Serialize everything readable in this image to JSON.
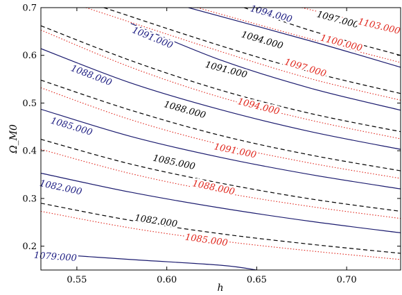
{
  "chart_data": {
    "type": "contour",
    "xlabel": "h",
    "ylabel": "Ω_M0",
    "xlim": [
      0.53,
      0.73
    ],
    "ylim": [
      0.15,
      0.7
    ],
    "xticks": [
      0.55,
      0.6,
      0.65,
      0.7
    ],
    "yticks": [
      0.2,
      0.3,
      0.4,
      0.5,
      0.6,
      0.7
    ],
    "xtick_labels": [
      "0.55",
      "0.60",
      "0.65",
      "0.70"
    ],
    "ytick_labels": [
      "0.2",
      "0.3",
      "0.4",
      "0.5",
      "0.6",
      "0.7"
    ],
    "grid": false,
    "legend": "none",
    "series": [
      {
        "style": "solid",
        "color": "#1a1a6e",
        "levels": [
          {
            "label": "1079.000",
            "points": [
              [
                0.53,
                0.185
              ],
              [
                0.58,
                0.172
              ],
              [
                0.63,
                0.16
              ],
              [
                0.65,
                0.15
              ]
            ],
            "label_at": [
              0.538,
              0.177
            ]
          },
          {
            "label": "1082.000",
            "points": [
              [
                0.53,
                0.353
              ],
              [
                0.58,
                0.313
              ],
              [
                0.63,
                0.28
              ],
              [
                0.68,
                0.252
              ],
              [
                0.73,
                0.228
              ]
            ],
            "label_at": [
              0.541,
              0.322
            ]
          },
          {
            "label": "1085.000",
            "points": [
              [
                0.53,
                0.487
              ],
              [
                0.58,
                0.43
              ],
              [
                0.63,
                0.386
              ],
              [
                0.68,
                0.35
              ],
              [
                0.73,
                0.32
              ]
            ],
            "label_at": [
              0.547,
              0.45
            ]
          },
          {
            "label": "1088.000",
            "points": [
              [
                0.53,
                0.614
              ],
              [
                0.58,
                0.542
              ],
              [
                0.63,
                0.486
              ],
              [
                0.68,
                0.44
              ],
              [
                0.73,
                0.403
              ]
            ],
            "label_at": [
              0.558,
              0.557
            ]
          },
          {
            "label": "1091.000",
            "points": [
              [
                0.58,
                0.667
              ],
              [
                0.63,
                0.59
              ],
              [
                0.68,
                0.531
              ],
              [
                0.73,
                0.485
              ]
            ],
            "label_at": [
              0.592,
              0.636
            ]
          },
          {
            "label": "1094.000",
            "points": [
              [
                0.612,
                0.7
              ],
              [
                0.68,
                0.63
              ],
              [
                0.73,
                0.575
              ]
            ],
            "label_at": [
              0.658,
              0.686
            ]
          }
        ]
      },
      {
        "style": "dashed",
        "color": "#000000",
        "levels": [
          {
            "label": "1082.000",
            "points": [
              [
                0.53,
                0.29
              ],
              [
                0.58,
                0.254
              ],
              [
                0.63,
                0.226
              ],
              [
                0.68,
                0.204
              ],
              [
                0.73,
                0.185
              ]
            ],
            "label_at": [
              0.594,
              0.252
            ]
          },
          {
            "label": "1085.000",
            "points": [
              [
                0.53,
                0.424
              ],
              [
                0.58,
                0.372
              ],
              [
                0.63,
                0.332
              ],
              [
                0.68,
                0.299
              ],
              [
                0.73,
                0.273
              ]
            ],
            "label_at": [
              0.604,
              0.375
            ]
          },
          {
            "label": "1088.000",
            "points": [
              [
                0.53,
                0.548
              ],
              [
                0.58,
                0.485
              ],
              [
                0.63,
                0.432
              ],
              [
                0.68,
                0.391
              ],
              [
                0.73,
                0.358
              ]
            ],
            "label_at": [
              0.61,
              0.485
            ]
          },
          {
            "label": "1091.000",
            "points": [
              [
                0.53,
                0.662
              ],
              [
                0.58,
                0.589
              ],
              [
                0.63,
                0.527
              ],
              [
                0.68,
                0.478
              ],
              [
                0.73,
                0.44
              ]
            ],
            "label_at": [
              0.633,
              0.569
            ]
          },
          {
            "label": "1094.000",
            "points": [
              [
                0.565,
                0.7
              ],
              [
                0.63,
                0.62
              ],
              [
                0.68,
                0.565
              ],
              [
                0.73,
                0.52
              ]
            ],
            "label_at": [
              0.653,
              0.631
            ]
          },
          {
            "label": "1097.000",
            "points": [
              [
                0.643,
                0.7
              ],
              [
                0.68,
                0.652
              ],
              [
                0.73,
                0.6
              ]
            ],
            "label_at": [
              0.695,
              0.674
            ]
          }
        ]
      },
      {
        "style": "dotted",
        "color": "#e0251b",
        "levels": [
          {
            "label": "1085.000",
            "points": [
              [
                0.53,
                0.273
              ],
              [
                0.58,
                0.238
              ],
              [
                0.63,
                0.211
              ],
              [
                0.68,
                0.19
              ],
              [
                0.73,
                0.172
              ]
            ],
            "label_at": [
              0.622,
              0.212
            ]
          },
          {
            "label": "1088.000",
            "points": [
              [
                0.53,
                0.403
              ],
              [
                0.58,
                0.352
              ],
              [
                0.63,
                0.313
              ],
              [
                0.68,
                0.283
              ],
              [
                0.73,
                0.258
              ]
            ],
            "label_at": [
              0.626,
              0.322
            ]
          },
          {
            "label": "1091.000",
            "points": [
              [
                0.53,
                0.532
              ],
              [
                0.58,
                0.465
              ],
              [
                0.63,
                0.413
              ],
              [
                0.68,
                0.374
              ],
              [
                0.73,
                0.342
              ]
            ],
            "label_at": [
              0.638,
              0.399
            ]
          },
          {
            "label": "1094.000",
            "points": [
              [
                0.53,
                0.653
              ],
              [
                0.58,
                0.575
              ],
              [
                0.63,
                0.512
              ],
              [
                0.68,
                0.464
              ],
              [
                0.73,
                0.425
              ]
            ],
            "label_at": [
              0.651,
              0.492
            ]
          },
          {
            "label": "1097.000",
            "points": [
              [
                0.555,
                0.7
              ],
              [
                0.63,
                0.608
              ],
              [
                0.68,
                0.551
              ],
              [
                0.73,
                0.506
              ]
            ],
            "label_at": [
              0.677,
              0.573
            ]
          },
          {
            "label": "1100.000",
            "points": [
              [
                0.617,
                0.7
              ],
              [
                0.68,
                0.634
              ],
              [
                0.73,
                0.585
              ]
            ],
            "label_at": [
              0.697,
              0.625
            ]
          },
          {
            "label": "1103.000",
            "points": [
              [
                0.675,
                0.7
              ],
              [
                0.73,
                0.65
              ]
            ],
            "label_at": [
              0.718,
              0.66
            ]
          }
        ]
      }
    ]
  }
}
